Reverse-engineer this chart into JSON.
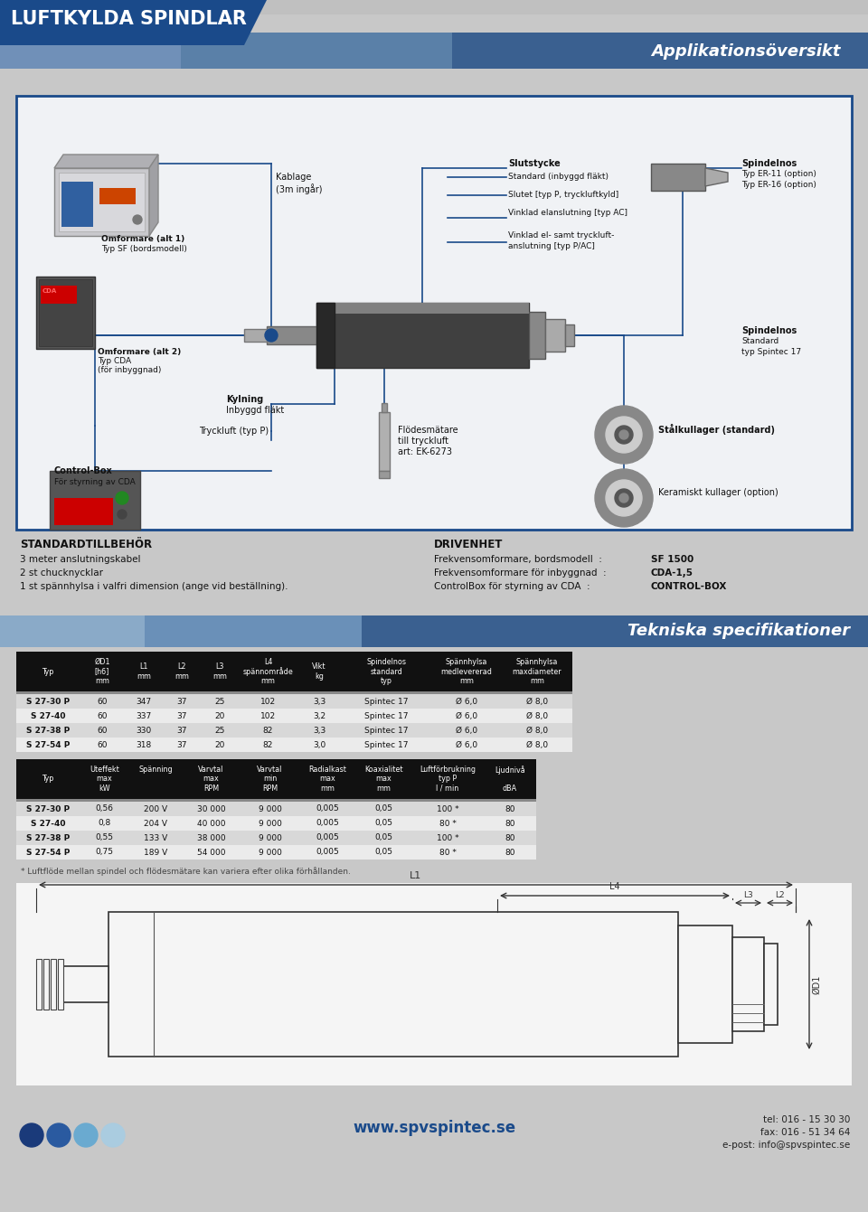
{
  "title": "LUFTKYLDA SPINDLAR",
  "bg_color": "#c8c8c8",
  "header_blue": "#1a4a8a",
  "header_light_blue": "#4a7ab5",
  "section1_title": "Applikationsöversikt",
  "section2_title": "Tekniska specifikationer",
  "standardtillbehor_title": "STANDARDTILLBEHÖR",
  "standardtillbehor_items": [
    "3 meter anslutningskabel",
    "2 st chucknycklar",
    "1 st spännhylsa i valfri dimension (ange vid beställning)."
  ],
  "drivenhet_title": "DRIVENHET",
  "drivenhet_items": [
    [
      "Frekvensomformare, bordsmodell",
      "SF 1500"
    ],
    [
      "Frekvensomformare för inbyggnad",
      "CDA-1,5"
    ],
    [
      "ControlBox för styrning av CDA",
      "CONTROL-BOX"
    ]
  ],
  "tech_data1": [
    [
      "S 27-30 P",
      "60",
      "347",
      "37",
      "25",
      "102",
      "3,3",
      "Spintec 17",
      "Ø 6,0",
      "Ø 8,0"
    ],
    [
      "S 27-40",
      "60",
      "337",
      "37",
      "20",
      "102",
      "3,2",
      "Spintec 17",
      "Ø 6,0",
      "Ø 8,0"
    ],
    [
      "S 27-38 P",
      "60",
      "330",
      "37",
      "25",
      "82",
      "3,3",
      "Spintec 17",
      "Ø 6,0",
      "Ø 8,0"
    ],
    [
      "S 27-54 P",
      "60",
      "318",
      "37",
      "20",
      "82",
      "3,0",
      "Spintec 17",
      "Ø 6,0",
      "Ø 8,0"
    ]
  ],
  "tech_data2": [
    [
      "S 27-30 P",
      "0,56",
      "200 V",
      "30 000",
      "9 000",
      "0,005",
      "0,05",
      "100 *",
      "80"
    ],
    [
      "S 27-40",
      "0,8",
      "204 V",
      "40 000",
      "9 000",
      "0,005",
      "0,05",
      "80 *",
      "80"
    ],
    [
      "S 27-38 P",
      "0,55",
      "133 V",
      "38 000",
      "9 000",
      "0,005",
      "0,05",
      "100 *",
      "80"
    ],
    [
      "S 27-54 P",
      "0,75",
      "189 V",
      "54 000",
      "9 000",
      "0,005",
      "0,05",
      "80 *",
      "80"
    ]
  ],
  "footnote": "* Luftflöde mellan spindel och flödesmätare kan variera efter olika förhållanden.",
  "website": "www.spvspintec.se",
  "tel": "tel: 016 - 15 30 30",
  "fax": "fax: 016 - 51 34 64",
  "email": "e-post: info@spvspintec.se",
  "dot_colors": [
    "#1a3a7a",
    "#2a5aa0",
    "#6aaad0",
    "#aacce0"
  ]
}
